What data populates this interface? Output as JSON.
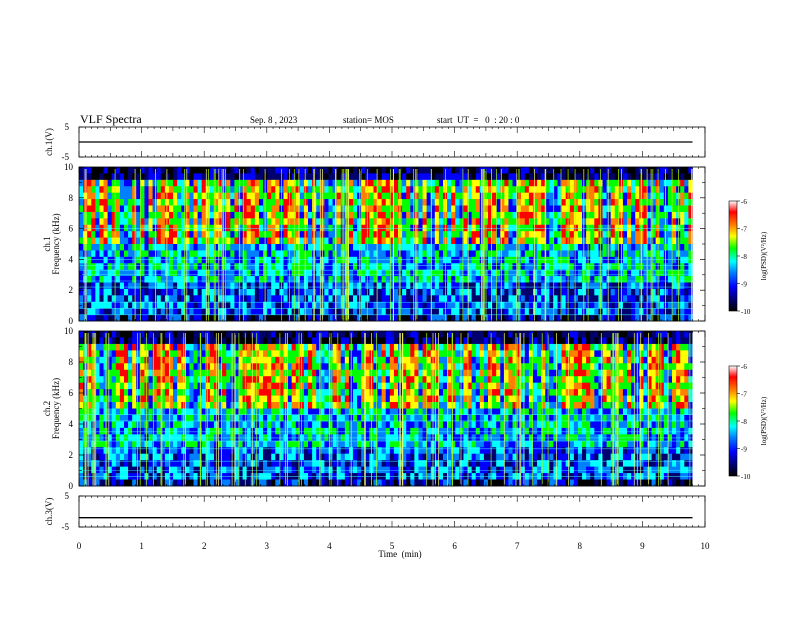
{
  "header": {
    "title": "VLF Spectra",
    "date": "Sep. 8  , 2023",
    "station": "station= MOS",
    "start": "start  UT  =   0  : 20 : 0"
  },
  "colors": {
    "colormap": [
      "#000000",
      "#00006e",
      "#0000ff",
      "#0080ff",
      "#00ffff",
      "#00ff00",
      "#ffff00",
      "#ff8000",
      "#ff0000",
      "#ffffff"
    ],
    "line": "#000000"
  },
  "chart_data": [
    {
      "type": "line",
      "panel": "ch1-voltage",
      "ylabel": "ch.1(V)",
      "ylim": [
        -5,
        5
      ],
      "yticks": [
        "5",
        "-5"
      ],
      "x": [
        0,
        9.8
      ],
      "values": [
        0,
        0
      ]
    },
    {
      "type": "heatmap",
      "panel": "ch1-spectrogram",
      "ylabel_top": "ch.1",
      "ylabel": "Frequency  (kHz)",
      "ylim": [
        0,
        10
      ],
      "yticks": [
        "0",
        "2",
        "4",
        "6",
        "8",
        "10"
      ],
      "xlim": [
        0,
        10
      ],
      "data_extent_min": 9.8,
      "colorbar": {
        "label": "log(PSD)(V²/Hz)",
        "range": [
          -10,
          -6
        ],
        "ticks": [
          "-6",
          "-7",
          "-8",
          "-9",
          "-10"
        ]
      }
    },
    {
      "type": "heatmap",
      "panel": "ch2-spectrogram",
      "ylabel_top": "ch.2",
      "ylabel": "Frequency  (kHz)",
      "ylim": [
        0,
        10
      ],
      "yticks": [
        "0",
        "2",
        "4",
        "6",
        "8",
        "10"
      ],
      "xlim": [
        0,
        10
      ],
      "data_extent_min": 9.8,
      "colorbar": {
        "label": "log(PSD)(V²/Hz)",
        "range": [
          -10,
          -6
        ],
        "ticks": [
          "-6",
          "-7",
          "-8",
          "-9",
          "-10"
        ]
      }
    },
    {
      "type": "line",
      "panel": "ch3-voltage",
      "ylabel": "ch.3(V)",
      "ylim": [
        -5,
        5
      ],
      "yticks": [
        "5",
        "-5"
      ],
      "x": [
        0,
        9.8
      ],
      "values": [
        -2,
        -2
      ]
    }
  ],
  "xaxis": {
    "label": "Time  (min)",
    "range": [
      0,
      10
    ],
    "ticks": [
      "0",
      "1",
      "2",
      "3",
      "4",
      "5",
      "6",
      "7",
      "8",
      "9",
      "10"
    ]
  }
}
